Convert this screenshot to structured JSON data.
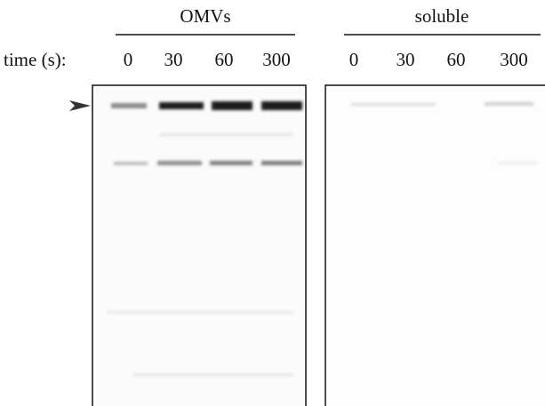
{
  "row_label": "time (s):",
  "groups": [
    {
      "label": "OMVs",
      "lanes": [
        "0",
        "30",
        "60",
        "300"
      ]
    },
    {
      "label": "soluble",
      "lanes": [
        "0",
        "30",
        "60",
        "300"
      ]
    }
  ]
}
